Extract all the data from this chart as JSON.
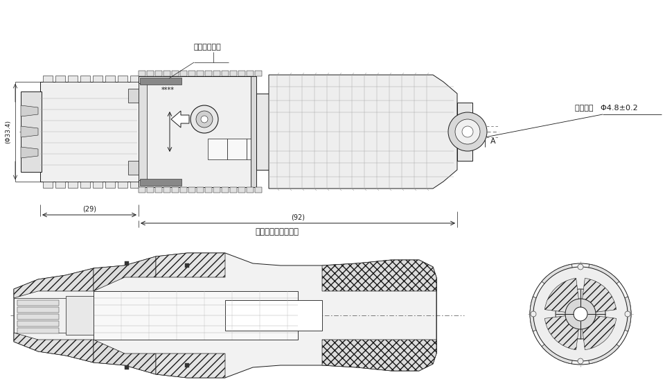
{
  "bg_color": "#ffffff",
  "line_color": "#1a1a1a",
  "label_batch": "批次编号标示",
  "label_cable": "适用电缆   Φ4.8±0.2",
  "label_dim1": "(29)",
  "label_dim2": "(92)",
  "label_nut": "接地螺母对接拧紧时",
  "label_dia": "(Φ33.4)",
  "label_A": "A",
  "label_stars": "****"
}
